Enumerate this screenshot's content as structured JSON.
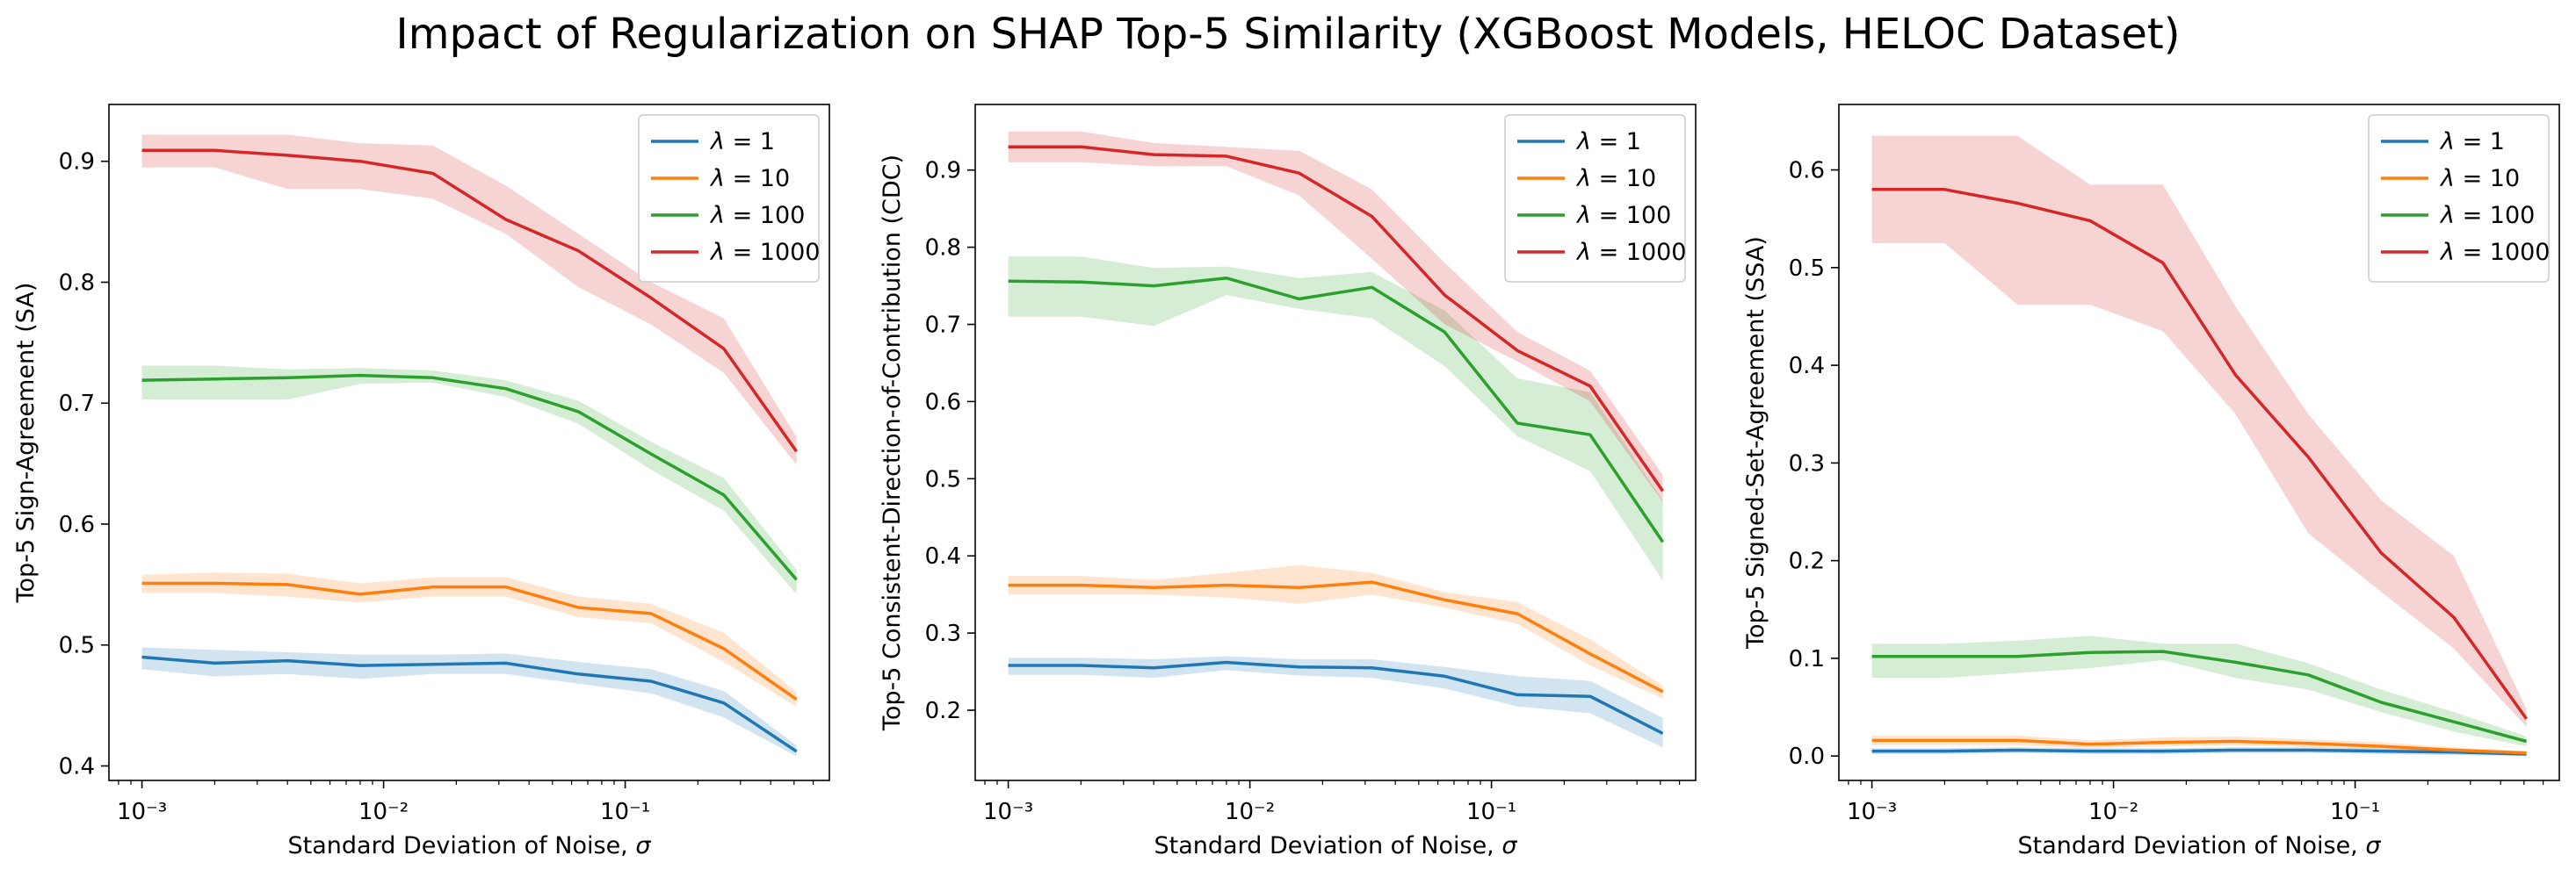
{
  "title": "Impact of Regularization on SHAP Top-5 Similarity (XGBoost Models, HELOC Dataset)",
  "colors": {
    "lambda_1": "#1f77b4",
    "lambda_10": "#ff7f0e",
    "lambda_100": "#2ca02c",
    "lambda_1000": "#d62728"
  },
  "chart_data": [
    {
      "type": "line",
      "xscale": "log",
      "xlabel": "Standard Deviation of Noise, σ",
      "ylabel": "Top-5 Sign-Agreement (SA)",
      "xlim": [
        0.00073,
        0.7
      ],
      "ylim": [
        0.388,
        0.947
      ],
      "xticks": [
        {
          "value": 0.001,
          "label": "10⁻³"
        },
        {
          "value": 0.01,
          "label": "10⁻²"
        },
        {
          "value": 0.1,
          "label": "10⁻¹"
        }
      ],
      "yticks": [
        0.4,
        0.5,
        0.6,
        0.7,
        0.8,
        0.9
      ],
      "legend": "top-right",
      "x": [
        0.001,
        0.002,
        0.004,
        0.008,
        0.016,
        0.032,
        0.064,
        0.128,
        0.256,
        0.512
      ],
      "series": [
        {
          "name": "λ = 1",
          "color": "#1f77b4",
          "values": [
            0.49,
            0.485,
            0.487,
            0.483,
            0.484,
            0.485,
            0.476,
            0.47,
            0.452,
            0.412
          ],
          "lower": [
            0.48,
            0.474,
            0.476,
            0.472,
            0.476,
            0.476,
            0.468,
            0.46,
            0.44,
            0.408
          ],
          "upper": [
            0.498,
            0.496,
            0.494,
            0.492,
            0.492,
            0.493,
            0.486,
            0.48,
            0.462,
            0.417
          ]
        },
        {
          "name": "λ = 10",
          "color": "#ff7f0e",
          "values": [
            0.551,
            0.551,
            0.55,
            0.542,
            0.548,
            0.548,
            0.531,
            0.526,
            0.497,
            0.455
          ],
          "lower": [
            0.543,
            0.543,
            0.54,
            0.535,
            0.54,
            0.54,
            0.523,
            0.518,
            0.486,
            0.449
          ],
          "upper": [
            0.558,
            0.56,
            0.559,
            0.551,
            0.556,
            0.556,
            0.54,
            0.534,
            0.51,
            0.461
          ]
        },
        {
          "name": "λ = 100",
          "color": "#2ca02c",
          "values": [
            0.719,
            0.72,
            0.721,
            0.723,
            0.721,
            0.712,
            0.693,
            0.658,
            0.624,
            0.554
          ],
          "lower": [
            0.703,
            0.703,
            0.703,
            0.716,
            0.717,
            0.705,
            0.683,
            0.645,
            0.611,
            0.542
          ],
          "upper": [
            0.731,
            0.731,
            0.728,
            0.729,
            0.727,
            0.719,
            0.702,
            0.668,
            0.638,
            0.562
          ]
        },
        {
          "name": "λ = 1000",
          "color": "#d62728",
          "values": [
            0.909,
            0.909,
            0.905,
            0.9,
            0.89,
            0.852,
            0.826,
            0.787,
            0.745,
            0.66
          ],
          "lower": [
            0.895,
            0.895,
            0.877,
            0.877,
            0.869,
            0.84,
            0.796,
            0.765,
            0.725,
            0.649
          ],
          "upper": [
            0.922,
            0.922,
            0.922,
            0.915,
            0.913,
            0.88,
            0.84,
            0.8,
            0.77,
            0.672
          ]
        }
      ]
    },
    {
      "type": "line",
      "xscale": "log",
      "xlabel": "Standard Deviation of Noise, σ",
      "ylabel": "Top-5 Consistent-Direction-of-Contribution (CDC)",
      "xlim": [
        0.00073,
        0.7
      ],
      "ylim": [
        0.109,
        0.985
      ],
      "xticks": [
        {
          "value": 0.001,
          "label": "10⁻³"
        },
        {
          "value": 0.01,
          "label": "10⁻²"
        },
        {
          "value": 0.1,
          "label": "10⁻¹"
        }
      ],
      "yticks": [
        0.2,
        0.3,
        0.4,
        0.5,
        0.6,
        0.7,
        0.8,
        0.9
      ],
      "legend": "top-right",
      "x": [
        0.001,
        0.002,
        0.004,
        0.008,
        0.016,
        0.032,
        0.064,
        0.128,
        0.256,
        0.512
      ],
      "series": [
        {
          "name": "λ = 1",
          "color": "#1f77b4",
          "values": [
            0.258,
            0.258,
            0.255,
            0.262,
            0.256,
            0.255,
            0.244,
            0.22,
            0.218,
            0.17
          ],
          "lower": [
            0.246,
            0.246,
            0.242,
            0.252,
            0.245,
            0.242,
            0.228,
            0.205,
            0.196,
            0.152
          ],
          "upper": [
            0.268,
            0.268,
            0.266,
            0.27,
            0.266,
            0.266,
            0.256,
            0.244,
            0.238,
            0.19
          ]
        },
        {
          "name": "λ = 10",
          "color": "#ff7f0e",
          "values": [
            0.362,
            0.362,
            0.359,
            0.362,
            0.359,
            0.366,
            0.343,
            0.325,
            0.273,
            0.224
          ],
          "lower": [
            0.35,
            0.35,
            0.35,
            0.346,
            0.338,
            0.35,
            0.333,
            0.312,
            0.258,
            0.215
          ],
          "upper": [
            0.374,
            0.374,
            0.369,
            0.378,
            0.388,
            0.378,
            0.353,
            0.34,
            0.292,
            0.232
          ]
        },
        {
          "name": "λ = 100",
          "color": "#2ca02c",
          "values": [
            0.756,
            0.755,
            0.75,
            0.76,
            0.733,
            0.748,
            0.69,
            0.572,
            0.557,
            0.418
          ],
          "lower": [
            0.71,
            0.71,
            0.698,
            0.738,
            0.72,
            0.708,
            0.646,
            0.555,
            0.51,
            0.368
          ],
          "upper": [
            0.788,
            0.788,
            0.773,
            0.775,
            0.76,
            0.768,
            0.718,
            0.63,
            0.612,
            0.472
          ]
        },
        {
          "name": "λ = 1000",
          "color": "#d62728",
          "values": [
            0.93,
            0.93,
            0.92,
            0.918,
            0.896,
            0.84,
            0.738,
            0.666,
            0.62,
            0.484
          ],
          "lower": [
            0.91,
            0.91,
            0.905,
            0.905,
            0.867,
            0.785,
            0.7,
            0.652,
            0.6,
            0.47
          ],
          "upper": [
            0.95,
            0.95,
            0.935,
            0.93,
            0.925,
            0.875,
            0.78,
            0.69,
            0.64,
            0.505
          ]
        }
      ]
    },
    {
      "type": "line",
      "xscale": "log",
      "xlabel": "Standard Deviation of Noise, σ",
      "ylabel": "Top-5 Signed-Set-Agreement (SSA)",
      "xlim": [
        0.00073,
        0.7
      ],
      "ylim": [
        -0.025,
        0.667
      ],
      "xticks": [
        {
          "value": 0.001,
          "label": "10⁻³"
        },
        {
          "value": 0.01,
          "label": "10⁻²"
        },
        {
          "value": 0.1,
          "label": "10⁻¹"
        }
      ],
      "yticks": [
        0.0,
        0.1,
        0.2,
        0.3,
        0.4,
        0.5,
        0.6
      ],
      "legend": "top-right",
      "x": [
        0.001,
        0.002,
        0.004,
        0.008,
        0.016,
        0.032,
        0.064,
        0.128,
        0.256,
        0.512
      ],
      "series": [
        {
          "name": "λ = 1",
          "color": "#1f77b4",
          "values": [
            0.005,
            0.005,
            0.006,
            0.005,
            0.005,
            0.006,
            0.006,
            0.005,
            0.004,
            0.002
          ],
          "lower": [
            0.002,
            0.002,
            0.003,
            0.002,
            0.002,
            0.003,
            0.003,
            0.002,
            0.001,
            0.0
          ],
          "upper": [
            0.008,
            0.008,
            0.009,
            0.008,
            0.008,
            0.009,
            0.009,
            0.008,
            0.007,
            0.004
          ]
        },
        {
          "name": "λ = 10",
          "color": "#ff7f0e",
          "values": [
            0.016,
            0.016,
            0.016,
            0.012,
            0.014,
            0.015,
            0.013,
            0.01,
            0.006,
            0.003
          ],
          "lower": [
            0.011,
            0.011,
            0.011,
            0.008,
            0.01,
            0.011,
            0.009,
            0.007,
            0.003,
            0.001
          ],
          "upper": [
            0.021,
            0.021,
            0.021,
            0.016,
            0.019,
            0.02,
            0.017,
            0.014,
            0.009,
            0.005
          ]
        },
        {
          "name": "λ = 100",
          "color": "#2ca02c",
          "values": [
            0.102,
            0.102,
            0.102,
            0.106,
            0.107,
            0.096,
            0.083,
            0.055,
            0.035,
            0.015
          ],
          "lower": [
            0.08,
            0.08,
            0.085,
            0.09,
            0.098,
            0.08,
            0.068,
            0.045,
            0.025,
            0.01
          ],
          "upper": [
            0.115,
            0.115,
            0.118,
            0.123,
            0.115,
            0.115,
            0.095,
            0.068,
            0.045,
            0.02
          ]
        },
        {
          "name": "λ = 1000",
          "color": "#d62728",
          "values": [
            0.58,
            0.58,
            0.566,
            0.548,
            0.505,
            0.39,
            0.306,
            0.208,
            0.142,
            0.038
          ],
          "lower": [
            0.525,
            0.525,
            0.462,
            0.462,
            0.435,
            0.35,
            0.228,
            0.168,
            0.11,
            0.03
          ],
          "upper": [
            0.635,
            0.635,
            0.635,
            0.585,
            0.585,
            0.46,
            0.35,
            0.262,
            0.205,
            0.048
          ]
        }
      ]
    }
  ]
}
